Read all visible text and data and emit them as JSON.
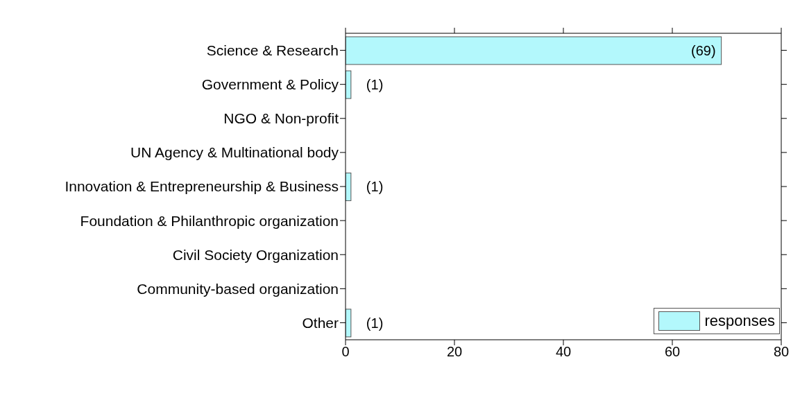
{
  "chart_data": {
    "type": "bar",
    "orientation": "horizontal",
    "categories": [
      "Science & Research",
      "Government & Policy",
      "NGO & Non-profit",
      "UN Agency & Multinational body",
      "Innovation & Entrepreneurship & Business",
      "Foundation & Philanthropic organization",
      "Civil Society Organization",
      "Community-based organization",
      "Other"
    ],
    "series": [
      {
        "name": "responses",
        "color": "#b3f8fc",
        "values": [
          69,
          1,
          0,
          0,
          1,
          0,
          0,
          0,
          1
        ],
        "value_labels": [
          "(69)",
          "(1)",
          null,
          null,
          "(1)",
          null,
          null,
          null,
          "(1)"
        ]
      }
    ],
    "xlim": [
      0,
      80
    ],
    "xticks": [
      0,
      20,
      40,
      60,
      80
    ],
    "legend": "bottom right"
  }
}
